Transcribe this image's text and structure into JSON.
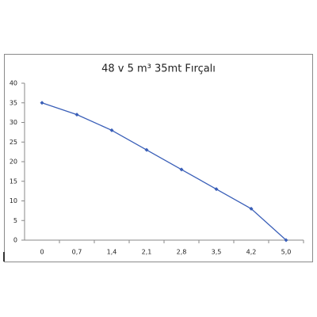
{
  "chart_data": {
    "type": "line",
    "title": "48 v 5 m³  35mt Fırçalı",
    "categories": [
      "0",
      "0,7",
      "1,4",
      "2,1",
      "2,8",
      "3,5",
      "4,2",
      "5,0"
    ],
    "series": [
      {
        "name": "35mt Fırçalı",
        "color": "#3a5fb8",
        "values": [
          35,
          32,
          28,
          23,
          18,
          13,
          8,
          0
        ]
      }
    ],
    "ylim": [
      0,
      40
    ],
    "yticks": [
      0,
      5,
      10,
      15,
      20,
      25,
      30,
      35,
      40
    ],
    "grid": false,
    "legend": false
  }
}
